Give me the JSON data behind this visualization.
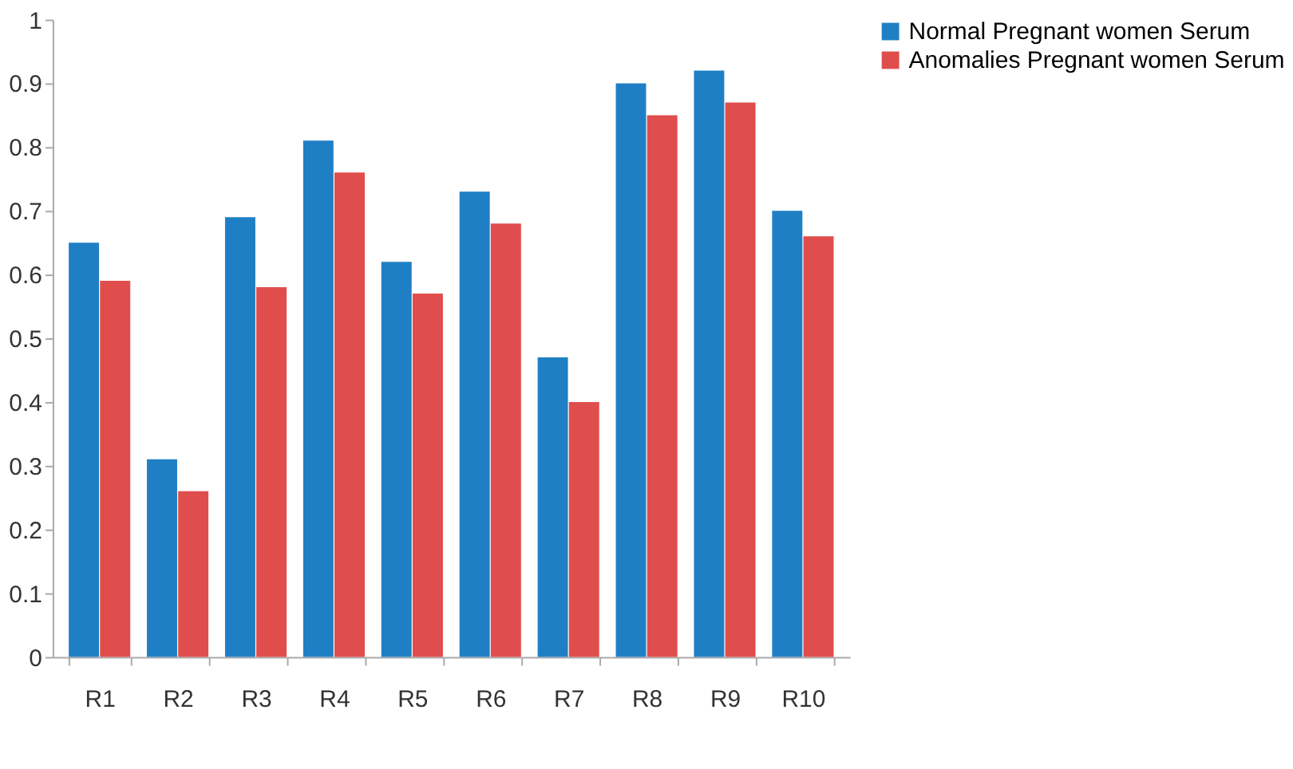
{
  "chart_data": {
    "type": "bar",
    "categories": [
      "R1",
      "R2",
      "R3",
      "R4",
      "R5",
      "R6",
      "R7",
      "R8",
      "R9",
      "R10"
    ],
    "series": [
      {
        "name": "Normal Pregnant women Serum",
        "color": "#1f7fc4",
        "values": [
          0.65,
          0.31,
          0.69,
          0.81,
          0.62,
          0.73,
          0.47,
          0.9,
          0.92,
          0.7
        ]
      },
      {
        "name": "Anomalies Pregnant women Serum",
        "color": "#e04d4d",
        "values": [
          0.59,
          0.26,
          0.58,
          0.76,
          0.57,
          0.68,
          0.4,
          0.85,
          0.87,
          0.66
        ]
      }
    ],
    "ylim": [
      0,
      1
    ],
    "yticks": [
      0,
      0.1,
      0.2,
      0.3,
      0.4,
      0.5,
      0.6,
      0.7,
      0.8,
      0.9,
      1
    ],
    "grid": false,
    "legend": "top right"
  }
}
